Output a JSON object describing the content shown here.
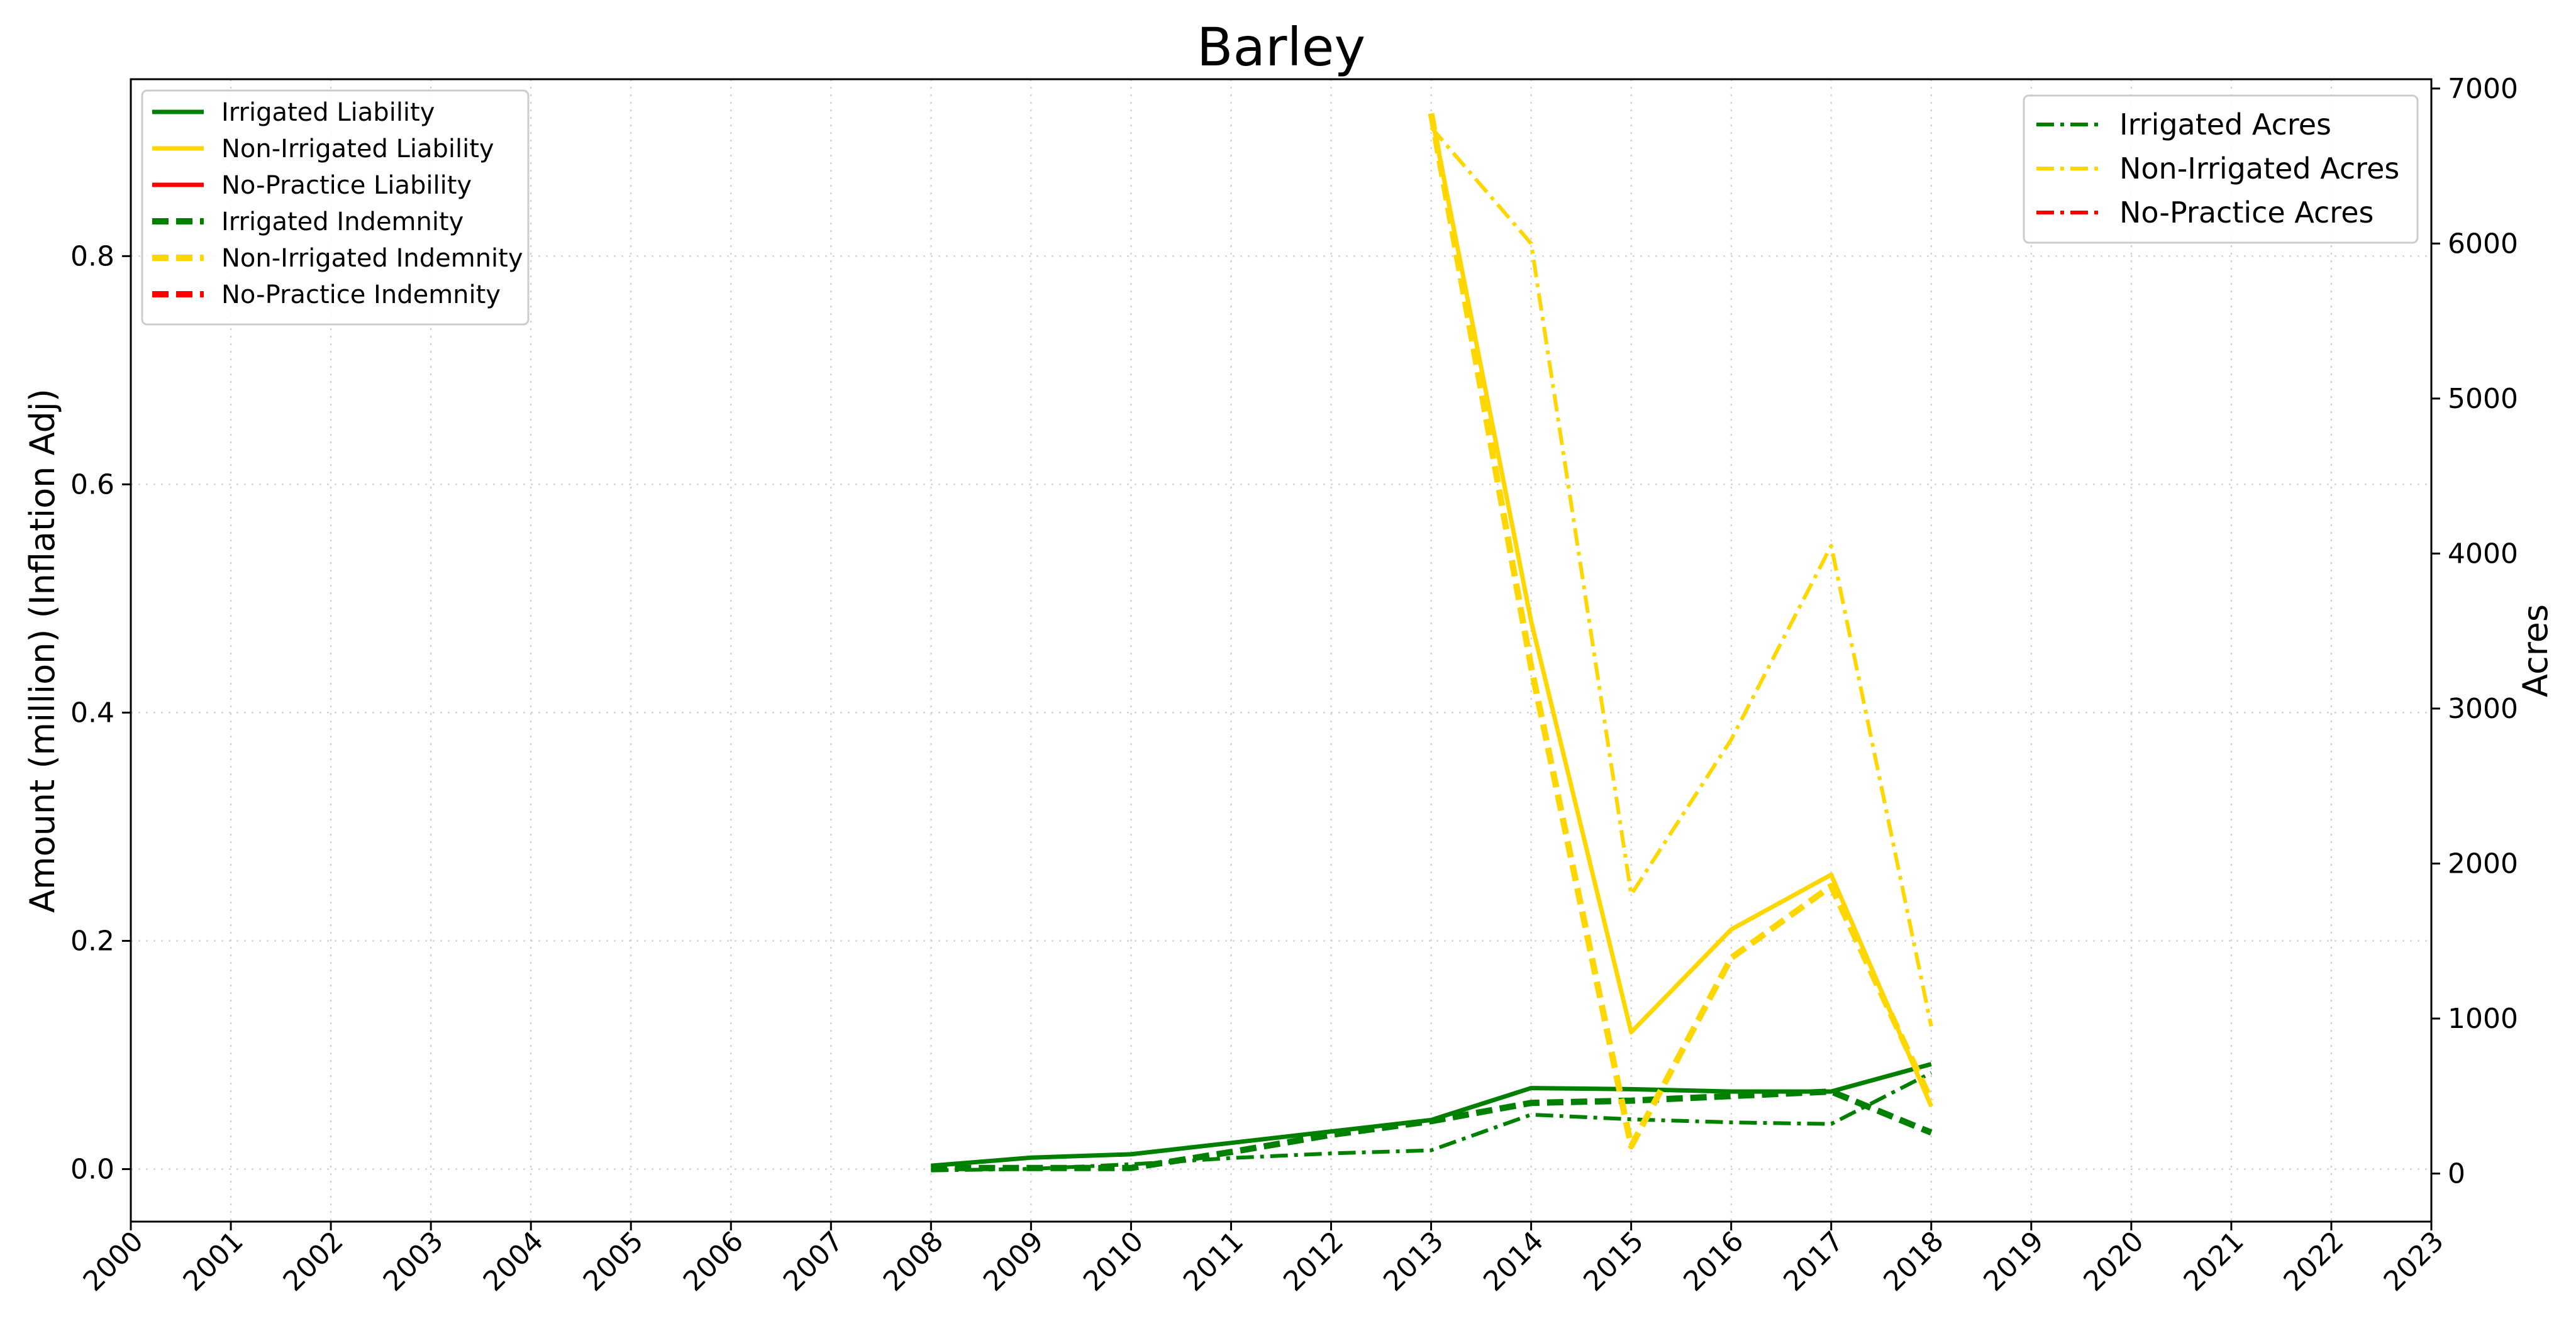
{
  "chart_data": {
    "type": "line",
    "title": "Barley",
    "ylabel_left": "Amount (million) (Inflation Adj)",
    "ylabel_right": "Acres",
    "xlim": [
      2000,
      2023
    ],
    "ylim_left": [
      -0.046,
      0.955
    ],
    "ylim_right": [
      -310,
      7060
    ],
    "x_ticks": [
      "2000",
      "2001",
      "2002",
      "2003",
      "2004",
      "2005",
      "2006",
      "2007",
      "2008",
      "2009",
      "2010",
      "2011",
      "2012",
      "2013",
      "2014",
      "2015",
      "2016",
      "2017",
      "2018",
      "2019",
      "2020",
      "2021",
      "2022",
      "2023"
    ],
    "y_ticks_left": [
      "0.0",
      "0.2",
      "0.4",
      "0.6",
      "0.8"
    ],
    "y_ticks_right": [
      "0",
      "1000",
      "2000",
      "3000",
      "4000",
      "5000",
      "6000",
      "7000"
    ],
    "grid": true,
    "x": [
      2008,
      2009,
      2010,
      2011,
      2012,
      2013,
      2014,
      2015,
      2016,
      2017,
      2018
    ],
    "series_left": [
      {
        "name": "Irrigated Liability",
        "color": "#008000",
        "style": "solid",
        "values": [
          0.003,
          0.01,
          0.013,
          0.023,
          0.033,
          0.043,
          0.071,
          0.07,
          0.068,
          0.068,
          0.092
        ]
      },
      {
        "name": "Non-Irrigated Liability",
        "color": "#FFD700",
        "style": "solid",
        "values": [
          null,
          null,
          null,
          null,
          null,
          0.925,
          0.48,
          0.12,
          0.21,
          0.258,
          0.055
        ]
      },
      {
        "name": "No-Practice Liability",
        "color": "#FF0000",
        "style": "solid",
        "values": []
      },
      {
        "name": "Irrigated Indemnity",
        "color": "#008000",
        "style": "dashed",
        "values": [
          0.001,
          0.001,
          0.001,
          0.015,
          0.03,
          0.042,
          0.058,
          0.06,
          0.064,
          0.068,
          0.032
        ]
      },
      {
        "name": "Non-Irrigated Indemnity",
        "color": "#FFD700",
        "style": "dashed",
        "values": [
          null,
          null,
          null,
          null,
          null,
          0.925,
          0.44,
          0.02,
          0.185,
          0.248,
          0.06
        ]
      },
      {
        "name": "No-Practice Indemnity",
        "color": "#FF0000",
        "style": "dashed",
        "values": []
      }
    ],
    "series_right": [
      {
        "name": "Irrigated Acres",
        "color": "#008000",
        "style": "dashdot",
        "values": [
          20,
          30,
          60,
          100,
          130,
          150,
          380,
          350,
          330,
          320,
          650
        ]
      },
      {
        "name": "Non-Irrigated Acres",
        "color": "#FFD700",
        "style": "dashdot",
        "values": [
          null,
          null,
          null,
          null,
          null,
          6750,
          6000,
          1800,
          2800,
          4050,
          950
        ]
      },
      {
        "name": "No-Practice Acres",
        "color": "#FF0000",
        "style": "dashdot",
        "values": []
      }
    ],
    "legend_left_placement": "top-left",
    "legend_right_placement": "top-right"
  }
}
